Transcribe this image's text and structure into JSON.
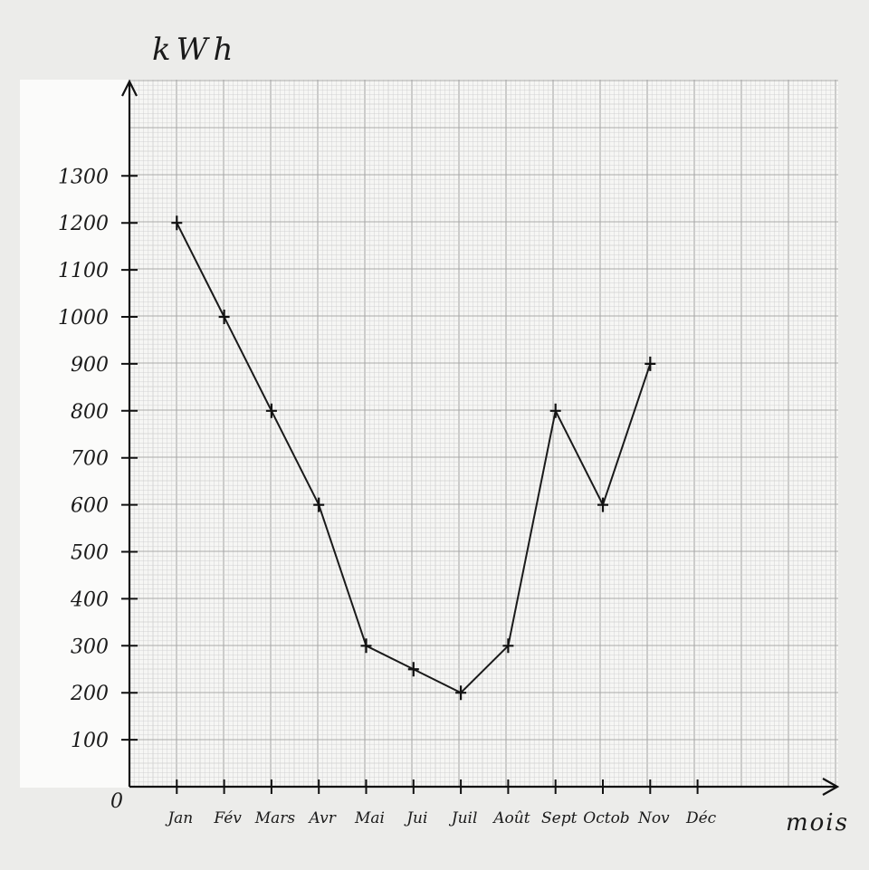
{
  "chart_data": {
    "type": "line",
    "title": "",
    "xlabel": "mois",
    "ylabel": "kWh",
    "origin_label": "0",
    "categories": [
      "Jan",
      "Fév",
      "Mars",
      "Avr",
      "Mai",
      "Jui",
      "Juil",
      "Août",
      "Sept",
      "Octob",
      "Nov",
      "Déc"
    ],
    "yticks": [
      "100",
      "200",
      "300",
      "400",
      "500",
      "600",
      "700",
      "800",
      "900",
      "1000",
      "1100",
      "1200",
      "1300"
    ],
    "series": [
      {
        "values": [
          1200,
          1000,
          800,
          600,
          300,
          250,
          200,
          300,
          800,
          600,
          900,
          null
        ]
      }
    ],
    "ylim": [
      0,
      1500
    ],
    "grid": true,
    "legend": "none",
    "colors": {
      "line": "#1a1a1a",
      "grid_major": "#a9a9a9",
      "grid_minor": "#cfcfcf",
      "paper": "#f6f6f4"
    }
  }
}
